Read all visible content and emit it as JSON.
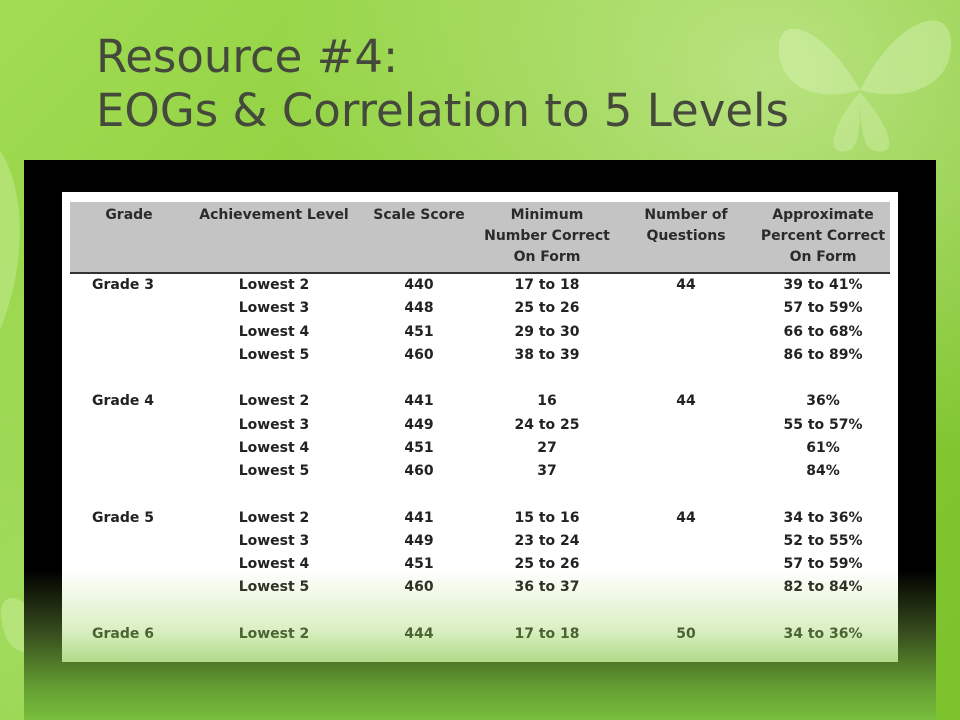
{
  "slide": {
    "title_line1": "Resource #4:",
    "title_line2": "EOGs & Correlation to 5 Levels"
  },
  "table": {
    "headers": [
      "Grade",
      "Achievement Level",
      "Scale Score",
      "Minimum Number Correct On Form",
      "Number of Questions",
      "Approximate Percent Correct On Form"
    ],
    "groups": [
      {
        "grade": "Grade 3",
        "questions": "44",
        "rows": [
          {
            "level": "Lowest 2",
            "score": "440",
            "minimum": "17 to 18",
            "percent": "39 to 41%"
          },
          {
            "level": "Lowest 3",
            "score": "448",
            "minimum": "25 to 26",
            "percent": "57 to 59%"
          },
          {
            "level": "Lowest 4",
            "score": "451",
            "minimum": "29 to 30",
            "percent": "66 to 68%"
          },
          {
            "level": "Lowest 5",
            "score": "460",
            "minimum": "38 to 39",
            "percent": "86 to 89%"
          }
        ]
      },
      {
        "grade": "Grade 4",
        "questions": "44",
        "rows": [
          {
            "level": "Lowest 2",
            "score": "441",
            "minimum": "16",
            "percent": "36%"
          },
          {
            "level": "Lowest 3",
            "score": "449",
            "minimum": "24 to 25",
            "percent": "55 to 57%"
          },
          {
            "level": "Lowest 4",
            "score": "451",
            "minimum": "27",
            "percent": "61%"
          },
          {
            "level": "Lowest 5",
            "score": "460",
            "minimum": "37",
            "percent": "84%"
          }
        ]
      },
      {
        "grade": "Grade 5",
        "questions": "44",
        "rows": [
          {
            "level": "Lowest 2",
            "score": "441",
            "minimum": "15 to 16",
            "percent": "34 to 36%"
          },
          {
            "level": "Lowest 3",
            "score": "449",
            "minimum": "23 to 24",
            "percent": "52 to 55%"
          },
          {
            "level": "Lowest 4",
            "score": "451",
            "minimum": "25 to 26",
            "percent": "57 to 59%"
          },
          {
            "level": "Lowest 5",
            "score": "460",
            "minimum": "36 to 37",
            "percent": "82 to 84%"
          }
        ]
      },
      {
        "grade": "Grade 6",
        "questions": "50",
        "rows": [
          {
            "level": "Lowest 2",
            "score": "444",
            "minimum": "17 to 18",
            "percent": "34 to 36%"
          }
        ]
      }
    ]
  }
}
